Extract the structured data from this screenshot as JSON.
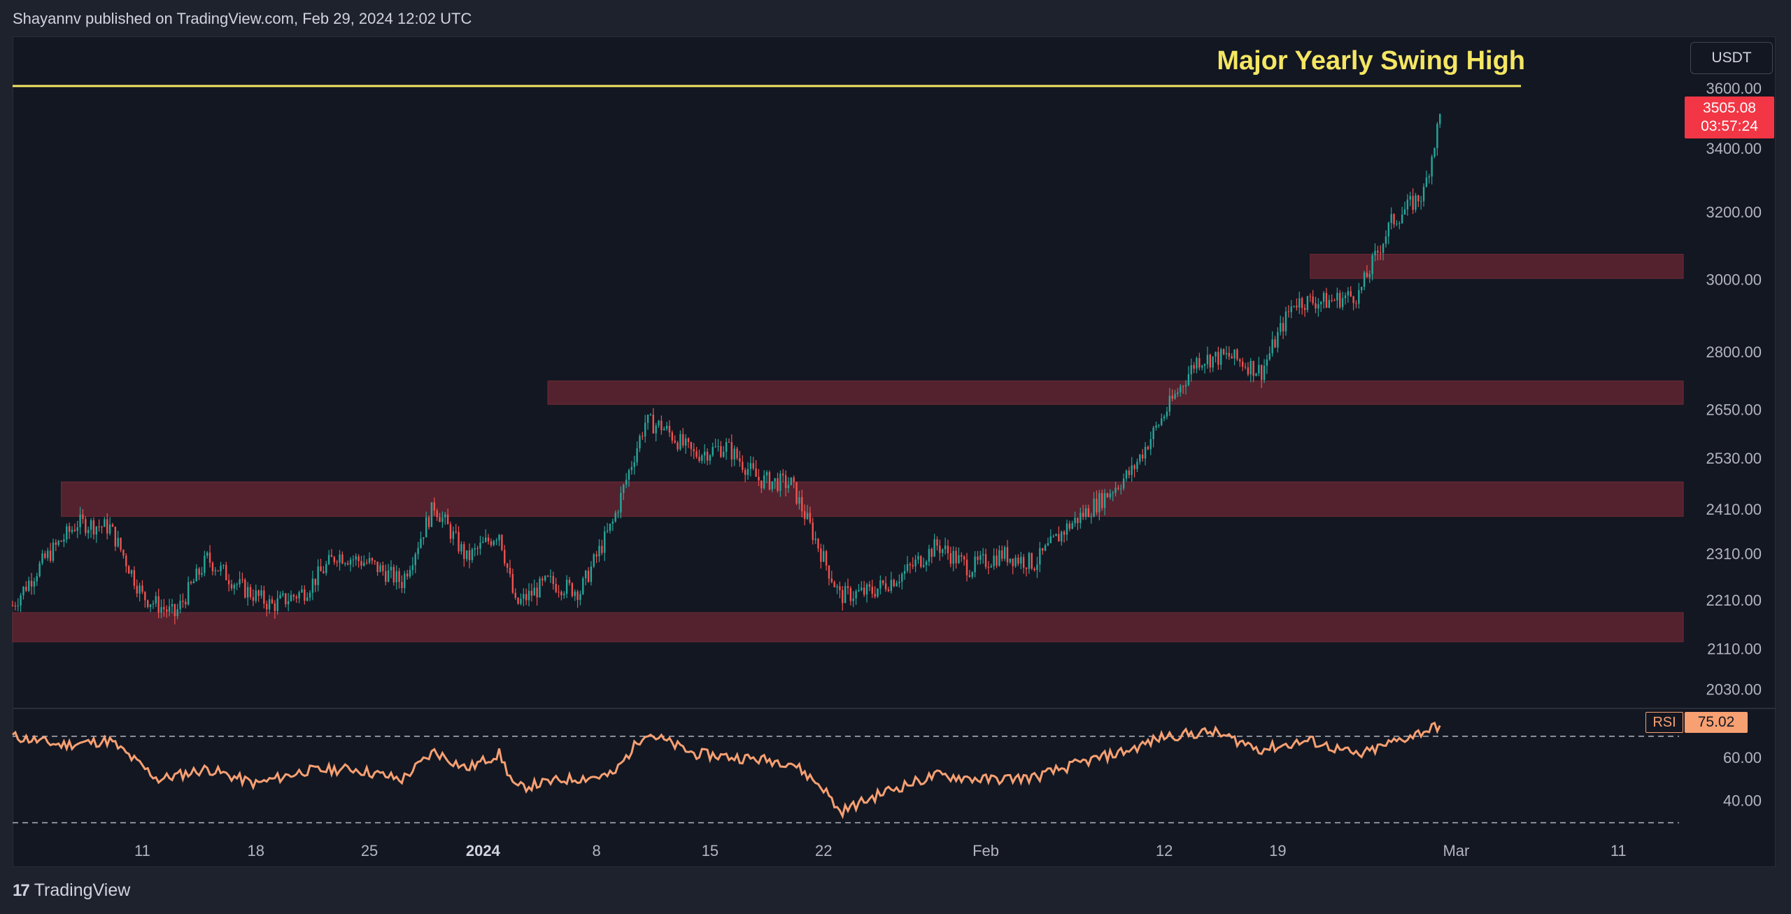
{
  "header": {
    "attribution": "Shayannv published on TradingView.com, Feb 29, 2024 12:02 UTC"
  },
  "footer": {
    "logo_text": "TradingView",
    "logo_mark": "17"
  },
  "toolbar": {
    "currency": "USDT"
  },
  "last_price": {
    "value": "3505.08",
    "countdown": "03:57:24"
  },
  "rsi": {
    "name": "RSI",
    "value": "75.02"
  },
  "annotations": {
    "swing_high": "Major Yearly Swing High"
  },
  "colors": {
    "background": "#131722",
    "frame": "#1e222d",
    "up_candle": "#26a69a",
    "down_candle": "#ef5350",
    "zone": "#5a2430",
    "swing_line": "#f5e663",
    "rsi_line": "#f7a072",
    "price_tag": "#f23645"
  },
  "chart_data": [
    {
      "type": "candlestick",
      "title": "",
      "price_axis": {
        "ticks": [
          "3600.00",
          "3400.00",
          "3200.00",
          "3000.00",
          "2800.00",
          "2650.00",
          "2530.00",
          "2410.00",
          "2310.00",
          "2210.00",
          "2110.00",
          "2030.00"
        ],
        "scale": "log"
      },
      "time_axis": {
        "ticks": [
          {
            "label": "11",
            "bold": false
          },
          {
            "label": "18",
            "bold": false
          },
          {
            "label": "25",
            "bold": false
          },
          {
            "label": "2024",
            "bold": true
          },
          {
            "label": "8",
            "bold": false
          },
          {
            "label": "15",
            "bold": false
          },
          {
            "label": "22",
            "bold": false
          },
          {
            "label": "Feb",
            "bold": false
          },
          {
            "label": "12",
            "bold": false
          },
          {
            "label": "19",
            "bold": false
          },
          {
            "label": "Mar",
            "bold": false
          },
          {
            "label": "11",
            "bold": false
          }
        ]
      },
      "swing_high_level": 3610,
      "zones": [
        {
          "low": 3005,
          "high": 3075,
          "from": "2024-02-21",
          "to": "2024-03-15"
        },
        {
          "low": 2665,
          "high": 2725,
          "from": "2024-01-05",
          "to": "2024-03-15"
        },
        {
          "low": 2395,
          "high": 2475,
          "from": "2023-12-06",
          "to": "2024-03-15"
        },
        {
          "low": 2125,
          "high": 2185,
          "from": "2023-12-03",
          "to": "2024-03-15"
        }
      ],
      "close_path": [
        [
          "2023-12-03",
          2200
        ],
        [
          "2023-12-05",
          2300
        ],
        [
          "2023-12-07",
          2380
        ],
        [
          "2023-12-09",
          2370
        ],
        [
          "2023-12-11",
          2220
        ],
        [
          "2023-12-13",
          2180
        ],
        [
          "2023-12-15",
          2300
        ],
        [
          "2023-12-17",
          2240
        ],
        [
          "2023-12-19",
          2200
        ],
        [
          "2023-12-21",
          2230
        ],
        [
          "2023-12-23",
          2310
        ],
        [
          "2023-12-25",
          2290
        ],
        [
          "2023-12-27",
          2250
        ],
        [
          "2023-12-29",
          2420
        ],
        [
          "2023-12-31",
          2300
        ],
        [
          "2024-01-02",
          2360
        ],
        [
          "2024-01-03",
          2200
        ],
        [
          "2024-01-05",
          2250
        ],
        [
          "2024-01-07",
          2230
        ],
        [
          "2024-01-09",
          2380
        ],
        [
          "2024-01-11",
          2620
        ],
        [
          "2024-01-12",
          2610
        ],
        [
          "2024-01-14",
          2540
        ],
        [
          "2024-01-16",
          2560
        ],
        [
          "2024-01-18",
          2480
        ],
        [
          "2024-01-20",
          2470
        ],
        [
          "2024-01-22",
          2300
        ],
        [
          "2024-01-23",
          2220
        ],
        [
          "2024-01-25",
          2230
        ],
        [
          "2024-01-27",
          2270
        ],
        [
          "2024-01-29",
          2330
        ],
        [
          "2024-01-31",
          2280
        ],
        [
          "2024-02-02",
          2310
        ],
        [
          "2024-02-04",
          2290
        ],
        [
          "2024-02-06",
          2370
        ],
        [
          "2024-02-08",
          2430
        ],
        [
          "2024-02-10",
          2500
        ],
        [
          "2024-02-12",
          2640
        ],
        [
          "2024-02-14",
          2780
        ],
        [
          "2024-02-16",
          2790
        ],
        [
          "2024-02-18",
          2750
        ],
        [
          "2024-02-20",
          2940
        ],
        [
          "2024-02-22",
          2940
        ],
        [
          "2024-02-24",
          2960
        ],
        [
          "2024-02-26",
          3170
        ],
        [
          "2024-02-28",
          3260
        ],
        [
          "2024-02-29",
          3505
        ]
      ]
    },
    {
      "type": "line",
      "title": "",
      "series": [
        {
          "name": "RSI",
          "values_path": [
            [
              "2023-12-03",
              70
            ],
            [
              "2023-12-06",
              66
            ],
            [
              "2023-12-09",
              68
            ],
            [
              "2023-12-12",
              50
            ],
            [
              "2023-12-15",
              55
            ],
            [
              "2023-12-18",
              48
            ],
            [
              "2023-12-21",
              54
            ],
            [
              "2023-12-24",
              55
            ],
            [
              "2023-12-27",
              50
            ],
            [
              "2023-12-29",
              63
            ],
            [
              "2023-12-31",
              55
            ],
            [
              "2024-01-02",
              62
            ],
            [
              "2024-01-03",
              46
            ],
            [
              "2024-01-06",
              50
            ],
            [
              "2024-01-09",
              52
            ],
            [
              "2024-01-11",
              72
            ],
            [
              "2024-01-14",
              62
            ],
            [
              "2024-01-17",
              60
            ],
            [
              "2024-01-20",
              58
            ],
            [
              "2024-01-22",
              46
            ],
            [
              "2024-01-23",
              35
            ],
            [
              "2024-01-26",
              45
            ],
            [
              "2024-01-29",
              52
            ],
            [
              "2024-02-01",
              50
            ],
            [
              "2024-02-04",
              51
            ],
            [
              "2024-02-07",
              58
            ],
            [
              "2024-02-10",
              64
            ],
            [
              "2024-02-12",
              70
            ],
            [
              "2024-02-15",
              72
            ],
            [
              "2024-02-18",
              64
            ],
            [
              "2024-02-21",
              68
            ],
            [
              "2024-02-24",
              61
            ],
            [
              "2024-02-26",
              67
            ],
            [
              "2024-02-29",
              75.02
            ]
          ]
        }
      ],
      "y_ticks": [
        "60.00",
        "40.00"
      ],
      "levels": [
        70,
        30
      ]
    }
  ]
}
